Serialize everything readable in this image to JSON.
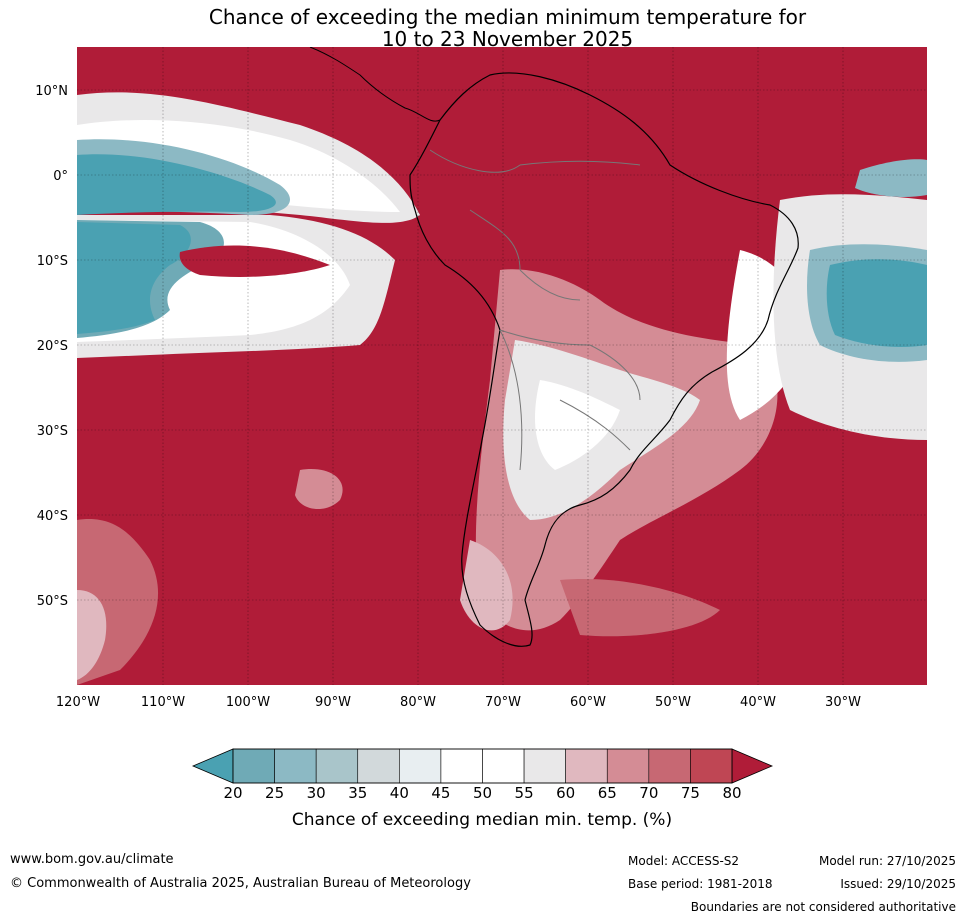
{
  "title": {
    "line1": "Chance of exceeding the median minimum temperature for",
    "line2": "10 to 23 November 2025"
  },
  "map": {
    "lat_labels": [
      "10°N",
      "0°",
      "10°S",
      "20°S",
      "30°S",
      "40°S",
      "50°S"
    ],
    "lon_labels": [
      "120°W",
      "110°W",
      "100°W",
      "90°W",
      "80°W",
      "70°W",
      "60°W",
      "50°W",
      "40°W",
      "30°W"
    ],
    "ocean_color": "#b01c38"
  },
  "legend": {
    "ticks": [
      "20",
      "25",
      "30",
      "35",
      "40",
      "45",
      "50",
      "55",
      "60",
      "65",
      "70",
      "75",
      "80"
    ],
    "colors": [
      "#4aa1b2",
      "#6faab6",
      "#8cb9c4",
      "#a9c5ca",
      "#d2d9db",
      "#e8eef1",
      "#ffffff",
      "#ffffff",
      "#e9e8e9",
      "#e0b8bf",
      "#d48c95",
      "#c76873",
      "#bf4654",
      "#b01c38"
    ],
    "label": "Chance of exceeding median min. temp. (%)"
  },
  "footer": {
    "website": "www.bom.gov.au/climate",
    "copyright": "© Commonwealth of Australia 2025, Australian Bureau of Meteorology",
    "model": "Model: ACCESS-S2",
    "base_period": "Base period: 1981-2018",
    "model_run": "Model run: 27/10/2025",
    "issued": "Issued: 29/10/2025",
    "disclaimer": "Boundaries are not considered authoritative"
  }
}
